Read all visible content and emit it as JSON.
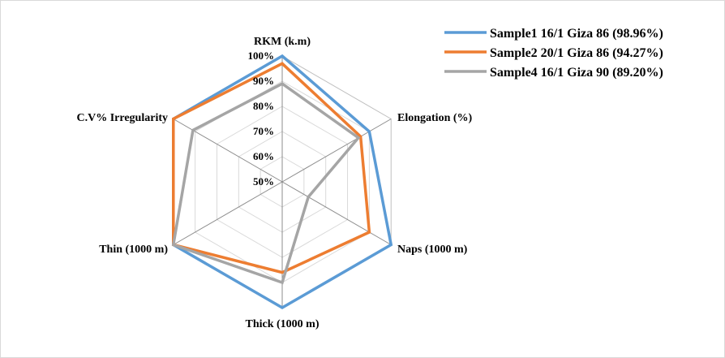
{
  "chart_data": {
    "type": "radar",
    "title": "",
    "axes": [
      "RKM (k.m)",
      "Elongation (%)",
      "Naps (1000 m)",
      "Thick (1000 m)",
      "Thin (1000 m)",
      "C.V% Irregularity"
    ],
    "radial_ticks": [
      "50%",
      "60%",
      "70%",
      "80%",
      "90%",
      "100%"
    ],
    "rlim": [
      50,
      100
    ],
    "gridlines": true,
    "legend_position": "top-right",
    "series": [
      {
        "name": "Sample1 16/1 Giza 86 (98.96%)",
        "color": "#5b9bd5",
        "values": [
          100,
          90,
          100,
          100,
          100,
          100
        ]
      },
      {
        "name": "Sample2 20/1 Giza 86 (94.27%)",
        "color": "#ed7d31",
        "values": [
          97,
          86,
          90,
          86,
          100,
          100
        ]
      },
      {
        "name": "Sample4 16/1 Giza 90 (89.20%)",
        "color": "#a5a5a5",
        "values": [
          89,
          85,
          62,
          90,
          100,
          91
        ]
      }
    ]
  }
}
